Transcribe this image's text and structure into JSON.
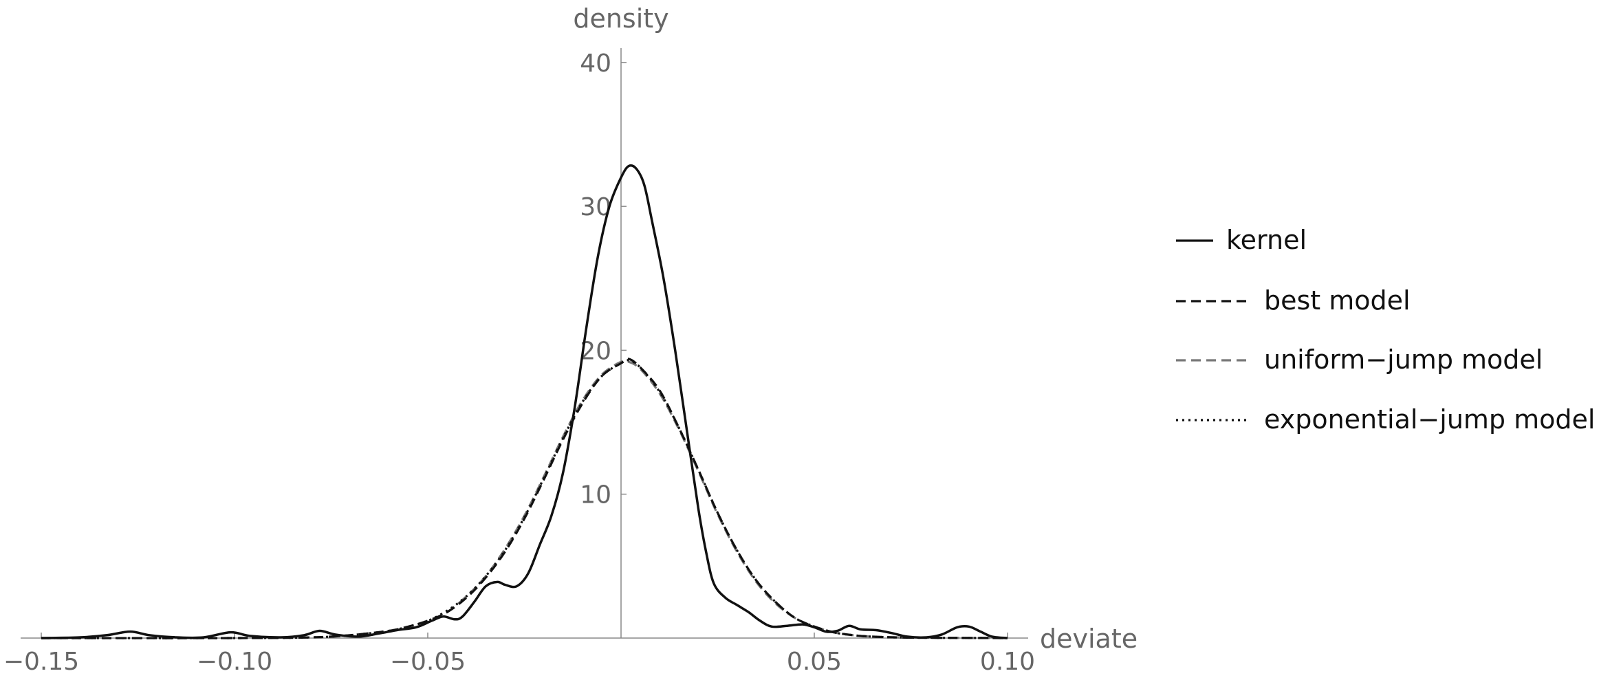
{
  "chart_data": {
    "type": "line",
    "xlabel": "deviate",
    "ylabel": "density",
    "xlim": [
      -0.15,
      0.1
    ],
    "ylim": [
      0,
      42
    ],
    "xticks": [
      {
        "value": -0.15,
        "label": "−0.15"
      },
      {
        "value": -0.1,
        "label": "−0.10"
      },
      {
        "value": -0.05,
        "label": "−0.05"
      },
      {
        "value": 0.05,
        "label": "0.05"
      },
      {
        "value": 0.1,
        "label": "0.10"
      }
    ],
    "yticks": [
      {
        "value": 10,
        "label": "10"
      },
      {
        "value": 20,
        "label": "20"
      },
      {
        "value": 30,
        "label": "30"
      },
      {
        "value": 40,
        "label": "40"
      }
    ],
    "grid": false,
    "legend_position": "right",
    "series": [
      {
        "name": "kernel",
        "color": "#111111",
        "dash": "solid",
        "points": [
          [
            -0.15,
            0.0
          ],
          [
            -0.14,
            0.05
          ],
          [
            -0.133,
            0.2
          ],
          [
            -0.127,
            0.45
          ],
          [
            -0.122,
            0.2
          ],
          [
            -0.115,
            0.05
          ],
          [
            -0.108,
            0.05
          ],
          [
            -0.101,
            0.4
          ],
          [
            -0.096,
            0.15
          ],
          [
            -0.088,
            0.05
          ],
          [
            -0.082,
            0.2
          ],
          [
            -0.078,
            0.5
          ],
          [
            -0.074,
            0.25
          ],
          [
            -0.068,
            0.1
          ],
          [
            -0.063,
            0.3
          ],
          [
            -0.058,
            0.55
          ],
          [
            -0.053,
            0.75
          ],
          [
            -0.049,
            1.2
          ],
          [
            -0.046,
            1.5
          ],
          [
            -0.043,
            1.3
          ],
          [
            -0.041,
            1.5
          ],
          [
            -0.038,
            2.5
          ],
          [
            -0.035,
            3.6
          ],
          [
            -0.032,
            3.9
          ],
          [
            -0.03,
            3.7
          ],
          [
            -0.027,
            3.6
          ],
          [
            -0.024,
            4.5
          ],
          [
            -0.021,
            6.5
          ],
          [
            -0.018,
            8.5
          ],
          [
            -0.015,
            11.5
          ],
          [
            -0.012,
            16.0
          ],
          [
            -0.009,
            21.5
          ],
          [
            -0.006,
            26.5
          ],
          [
            -0.003,
            30.0
          ],
          [
            0.0,
            32.0
          ],
          [
            0.002,
            32.8
          ],
          [
            0.004,
            32.6
          ],
          [
            0.006,
            31.5
          ],
          [
            0.008,
            29.0
          ],
          [
            0.011,
            25.0
          ],
          [
            0.014,
            20.0
          ],
          [
            0.017,
            14.5
          ],
          [
            0.02,
            9.0
          ],
          [
            0.022,
            6.0
          ],
          [
            0.024,
            3.8
          ],
          [
            0.027,
            2.8
          ],
          [
            0.03,
            2.3
          ],
          [
            0.033,
            1.8
          ],
          [
            0.036,
            1.2
          ],
          [
            0.039,
            0.8
          ],
          [
            0.043,
            0.85
          ],
          [
            0.047,
            0.95
          ],
          [
            0.05,
            0.75
          ],
          [
            0.053,
            0.45
          ],
          [
            0.056,
            0.5
          ],
          [
            0.059,
            0.85
          ],
          [
            0.062,
            0.6
          ],
          [
            0.066,
            0.55
          ],
          [
            0.07,
            0.35
          ],
          [
            0.074,
            0.1
          ],
          [
            0.079,
            0.05
          ],
          [
            0.083,
            0.25
          ],
          [
            0.087,
            0.75
          ],
          [
            0.09,
            0.8
          ],
          [
            0.093,
            0.45
          ],
          [
            0.096,
            0.1
          ],
          [
            0.1,
            0.0
          ]
        ]
      },
      {
        "name": "best model",
        "color": "#111111",
        "dash": "14,8",
        "points": [
          [
            -0.15,
            0.0
          ],
          [
            -0.1,
            0.0
          ],
          [
            -0.08,
            0.05
          ],
          [
            -0.07,
            0.2
          ],
          [
            -0.06,
            0.5
          ],
          [
            -0.055,
            0.8
          ],
          [
            -0.05,
            1.2
          ],
          [
            -0.045,
            1.8
          ],
          [
            -0.04,
            2.8
          ],
          [
            -0.035,
            4.2
          ],
          [
            -0.03,
            6.0
          ],
          [
            -0.025,
            8.3
          ],
          [
            -0.02,
            11.0
          ],
          [
            -0.015,
            13.8
          ],
          [
            -0.01,
            16.3
          ],
          [
            -0.005,
            18.2
          ],
          [
            0.0,
            19.1
          ],
          [
            0.002,
            19.4
          ],
          [
            0.005,
            18.8
          ],
          [
            0.01,
            17.2
          ],
          [
            0.015,
            14.6
          ],
          [
            0.02,
            11.7
          ],
          [
            0.025,
            8.7
          ],
          [
            0.03,
            6.1
          ],
          [
            0.035,
            4.0
          ],
          [
            0.04,
            2.5
          ],
          [
            0.045,
            1.4
          ],
          [
            0.05,
            0.8
          ],
          [
            0.055,
            0.4
          ],
          [
            0.06,
            0.2
          ],
          [
            0.065,
            0.1
          ],
          [
            0.075,
            0.03
          ],
          [
            0.1,
            0.0
          ]
        ]
      },
      {
        "name": "uniform−jump model",
        "color": "#777777",
        "dash": "14,8",
        "points": [
          [
            -0.15,
            0.0
          ],
          [
            -0.1,
            0.0
          ],
          [
            -0.08,
            0.05
          ],
          [
            -0.07,
            0.2
          ],
          [
            -0.06,
            0.5
          ],
          [
            -0.055,
            0.8
          ],
          [
            -0.05,
            1.2
          ],
          [
            -0.045,
            1.8
          ],
          [
            -0.04,
            2.9
          ],
          [
            -0.035,
            4.3
          ],
          [
            -0.03,
            6.2
          ],
          [
            -0.025,
            8.5
          ],
          [
            -0.02,
            11.2
          ],
          [
            -0.015,
            14.0
          ],
          [
            -0.01,
            16.5
          ],
          [
            -0.005,
            18.3
          ],
          [
            0.0,
            19.2
          ],
          [
            0.002,
            19.2
          ],
          [
            0.005,
            18.7
          ],
          [
            0.01,
            17.0
          ],
          [
            0.015,
            14.5
          ],
          [
            0.02,
            11.6
          ],
          [
            0.025,
            8.6
          ],
          [
            0.03,
            6.0
          ],
          [
            0.035,
            3.9
          ],
          [
            0.04,
            2.4
          ],
          [
            0.045,
            1.4
          ],
          [
            0.05,
            0.8
          ],
          [
            0.055,
            0.4
          ],
          [
            0.06,
            0.2
          ],
          [
            0.065,
            0.1
          ],
          [
            0.075,
            0.03
          ],
          [
            0.1,
            0.0
          ]
        ]
      },
      {
        "name": "exponential−jump model",
        "color": "#111111",
        "dash": "3,6",
        "points": [
          [
            -0.15,
            0.0
          ],
          [
            -0.1,
            0.0
          ],
          [
            -0.08,
            0.05
          ],
          [
            -0.07,
            0.2
          ],
          [
            -0.06,
            0.5
          ],
          [
            -0.055,
            0.8
          ],
          [
            -0.05,
            1.2
          ],
          [
            -0.045,
            1.9
          ],
          [
            -0.04,
            2.9
          ],
          [
            -0.035,
            4.3
          ],
          [
            -0.03,
            6.1
          ],
          [
            -0.025,
            8.4
          ],
          [
            -0.02,
            11.1
          ],
          [
            -0.015,
            13.9
          ],
          [
            -0.01,
            16.4
          ],
          [
            -0.005,
            18.2
          ],
          [
            0.0,
            19.1
          ],
          [
            0.002,
            19.3
          ],
          [
            0.005,
            18.8
          ],
          [
            0.01,
            17.1
          ],
          [
            0.015,
            14.6
          ],
          [
            0.02,
            11.7
          ],
          [
            0.025,
            8.7
          ],
          [
            0.03,
            6.1
          ],
          [
            0.035,
            4.0
          ],
          [
            0.04,
            2.5
          ],
          [
            0.045,
            1.4
          ],
          [
            0.05,
            0.8
          ],
          [
            0.055,
            0.4
          ],
          [
            0.06,
            0.2
          ],
          [
            0.065,
            0.1
          ],
          [
            0.075,
            0.03
          ],
          [
            0.1,
            0.0
          ]
        ]
      }
    ]
  }
}
